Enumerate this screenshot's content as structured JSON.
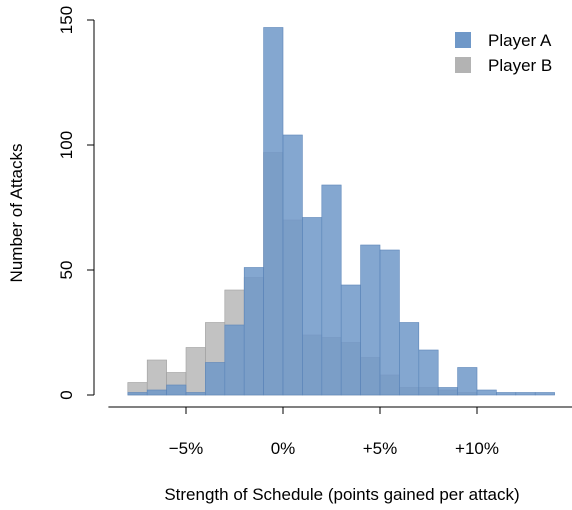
{
  "chart_data": {
    "type": "histogram",
    "xlabel": "Strength of Schedule (points gained per attack)",
    "ylabel": "Number of Attacks",
    "xlim": [
      -9,
      15
    ],
    "ylim": [
      0,
      150
    ],
    "x_ticks": [
      {
        "value": -5,
        "label": "−5%"
      },
      {
        "value": 0,
        "label": "0%"
      },
      {
        "value": 5,
        "label": "+5%"
      },
      {
        "value": 10,
        "label": "+10%"
      }
    ],
    "y_ticks": [
      {
        "value": 0,
        "label": "0"
      },
      {
        "value": 50,
        "label": "50"
      },
      {
        "value": 100,
        "label": "100"
      },
      {
        "value": 150,
        "label": "150"
      }
    ],
    "bin_edges": [
      -8,
      -7,
      -6,
      -5,
      -4,
      -3,
      -2,
      -1,
      0,
      1,
      2,
      3,
      4,
      5,
      6,
      7,
      8,
      9,
      10,
      11,
      12,
      13,
      14
    ],
    "series": [
      {
        "name": "Player A",
        "color": "#6f98c8",
        "values": [
          1,
          2,
          4,
          1,
          13,
          28,
          51,
          147,
          104,
          71,
          84,
          44,
          60,
          58,
          29,
          18,
          3,
          11,
          2,
          1,
          1,
          1
        ]
      },
      {
        "name": "Player B",
        "color": "#b3b3b3",
        "values": [
          5,
          14,
          9,
          19,
          29,
          42,
          47,
          97,
          70,
          24,
          23,
          21,
          15,
          8,
          3,
          3,
          2,
          1,
          0,
          0,
          0,
          0
        ]
      }
    ],
    "legend_position": "top-right",
    "grid": false
  }
}
